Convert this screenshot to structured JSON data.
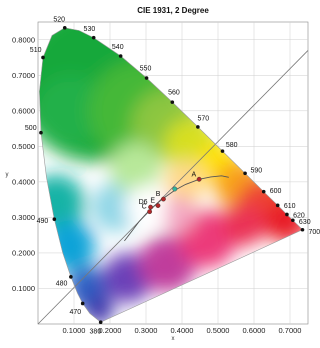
{
  "chart_data": {
    "type": "scatter",
    "title": "CIE 1931, 2 Degree",
    "xlabel": "x",
    "ylabel": "y",
    "xlim": [
      0.0,
      0.75
    ],
    "ylim": [
      0.0,
      0.85
    ],
    "x_ticks": [
      "0.1000",
      "0.2000",
      "0.3000",
      "0.4000",
      "0.5000",
      "0.6000",
      "0.7000"
    ],
    "y_ticks": [
      "0.1000",
      "0.2000",
      "0.3000",
      "0.4000",
      "0.5000",
      "0.6000",
      "0.7000",
      "0.8000"
    ],
    "grid": true,
    "spectral_locus": [
      {
        "nm": 380,
        "x": 0.1741,
        "y": 0.005,
        "label": "380"
      },
      {
        "nm": 460,
        "x": 0.144,
        "y": 0.0297
      },
      {
        "nm": 470,
        "x": 0.1241,
        "y": 0.0578,
        "label": "470"
      },
      {
        "nm": 475,
        "x": 0.1096,
        "y": 0.0868
      },
      {
        "nm": 480,
        "x": 0.0913,
        "y": 0.1327,
        "label": "480"
      },
      {
        "nm": 485,
        "x": 0.0687,
        "y": 0.2007
      },
      {
        "nm": 490,
        "x": 0.0454,
        "y": 0.295,
        "label": "490"
      },
      {
        "nm": 495,
        "x": 0.0235,
        "y": 0.4127
      },
      {
        "nm": 500,
        "x": 0.0082,
        "y": 0.5384,
        "label": "500"
      },
      {
        "nm": 505,
        "x": 0.0039,
        "y": 0.6548
      },
      {
        "nm": 510,
        "x": 0.0139,
        "y": 0.7502,
        "label": "510"
      },
      {
        "nm": 515,
        "x": 0.0389,
        "y": 0.812
      },
      {
        "nm": 520,
        "x": 0.0743,
        "y": 0.8338,
        "label": "520"
      },
      {
        "nm": 525,
        "x": 0.1142,
        "y": 0.8262
      },
      {
        "nm": 530,
        "x": 0.1547,
        "y": 0.8059,
        "label": "530"
      },
      {
        "nm": 540,
        "x": 0.2296,
        "y": 0.7543,
        "label": "540"
      },
      {
        "nm": 550,
        "x": 0.3016,
        "y": 0.6923,
        "label": "550"
      },
      {
        "nm": 560,
        "x": 0.3731,
        "y": 0.6245,
        "label": "560"
      },
      {
        "nm": 570,
        "x": 0.4441,
        "y": 0.5547,
        "label": "570"
      },
      {
        "nm": 580,
        "x": 0.5125,
        "y": 0.4866,
        "label": "580"
      },
      {
        "nm": 590,
        "x": 0.5752,
        "y": 0.4242,
        "label": "590"
      },
      {
        "nm": 600,
        "x": 0.627,
        "y": 0.3725,
        "label": "600"
      },
      {
        "nm": 610,
        "x": 0.6658,
        "y": 0.334,
        "label": "610"
      },
      {
        "nm": 620,
        "x": 0.6915,
        "y": 0.3083,
        "label": "620"
      },
      {
        "nm": 630,
        "x": 0.7079,
        "y": 0.292,
        "label": "630"
      },
      {
        "nm": 700,
        "x": 0.7347,
        "y": 0.2653,
        "label": "700"
      }
    ],
    "planckian_locus": [
      {
        "x": 0.24,
        "y": 0.234
      },
      {
        "x": 0.265,
        "y": 0.267
      },
      {
        "x": 0.2806,
        "y": 0.2883
      },
      {
        "x": 0.3,
        "y": 0.31
      },
      {
        "x": 0.3221,
        "y": 0.3318
      },
      {
        "x": 0.345,
        "y": 0.3516
      },
      {
        "x": 0.3805,
        "y": 0.3768
      },
      {
        "x": 0.41,
        "y": 0.393
      },
      {
        "x": 0.4476,
        "y": 0.4074
      },
      {
        "x": 0.48,
        "y": 0.414
      },
      {
        "x": 0.51,
        "y": 0.417
      },
      {
        "x": 0.53,
        "y": 0.413
      }
    ],
    "diagonal_line": [
      {
        "x": 0.0,
        "y": 0.0
      },
      {
        "x": 0.75,
        "y": 0.77
      }
    ],
    "points": [
      {
        "label": "D6",
        "x": 0.3127,
        "y": 0.329,
        "color": "#b0282a"
      },
      {
        "label": "C",
        "x": 0.3101,
        "y": 0.3162,
        "color": "#b0282a"
      },
      {
        "label": "E",
        "x": 0.3333,
        "y": 0.3333,
        "color": "#b0282a"
      },
      {
        "label": "B",
        "x": 0.3484,
        "y": 0.3516,
        "color": "#b0282a"
      },
      {
        "label": "",
        "x": 0.38,
        "y": 0.38,
        "color": "#2fb5a0"
      },
      {
        "label": "A",
        "x": 0.4476,
        "y": 0.4074,
        "color": "#b0282a"
      }
    ]
  }
}
